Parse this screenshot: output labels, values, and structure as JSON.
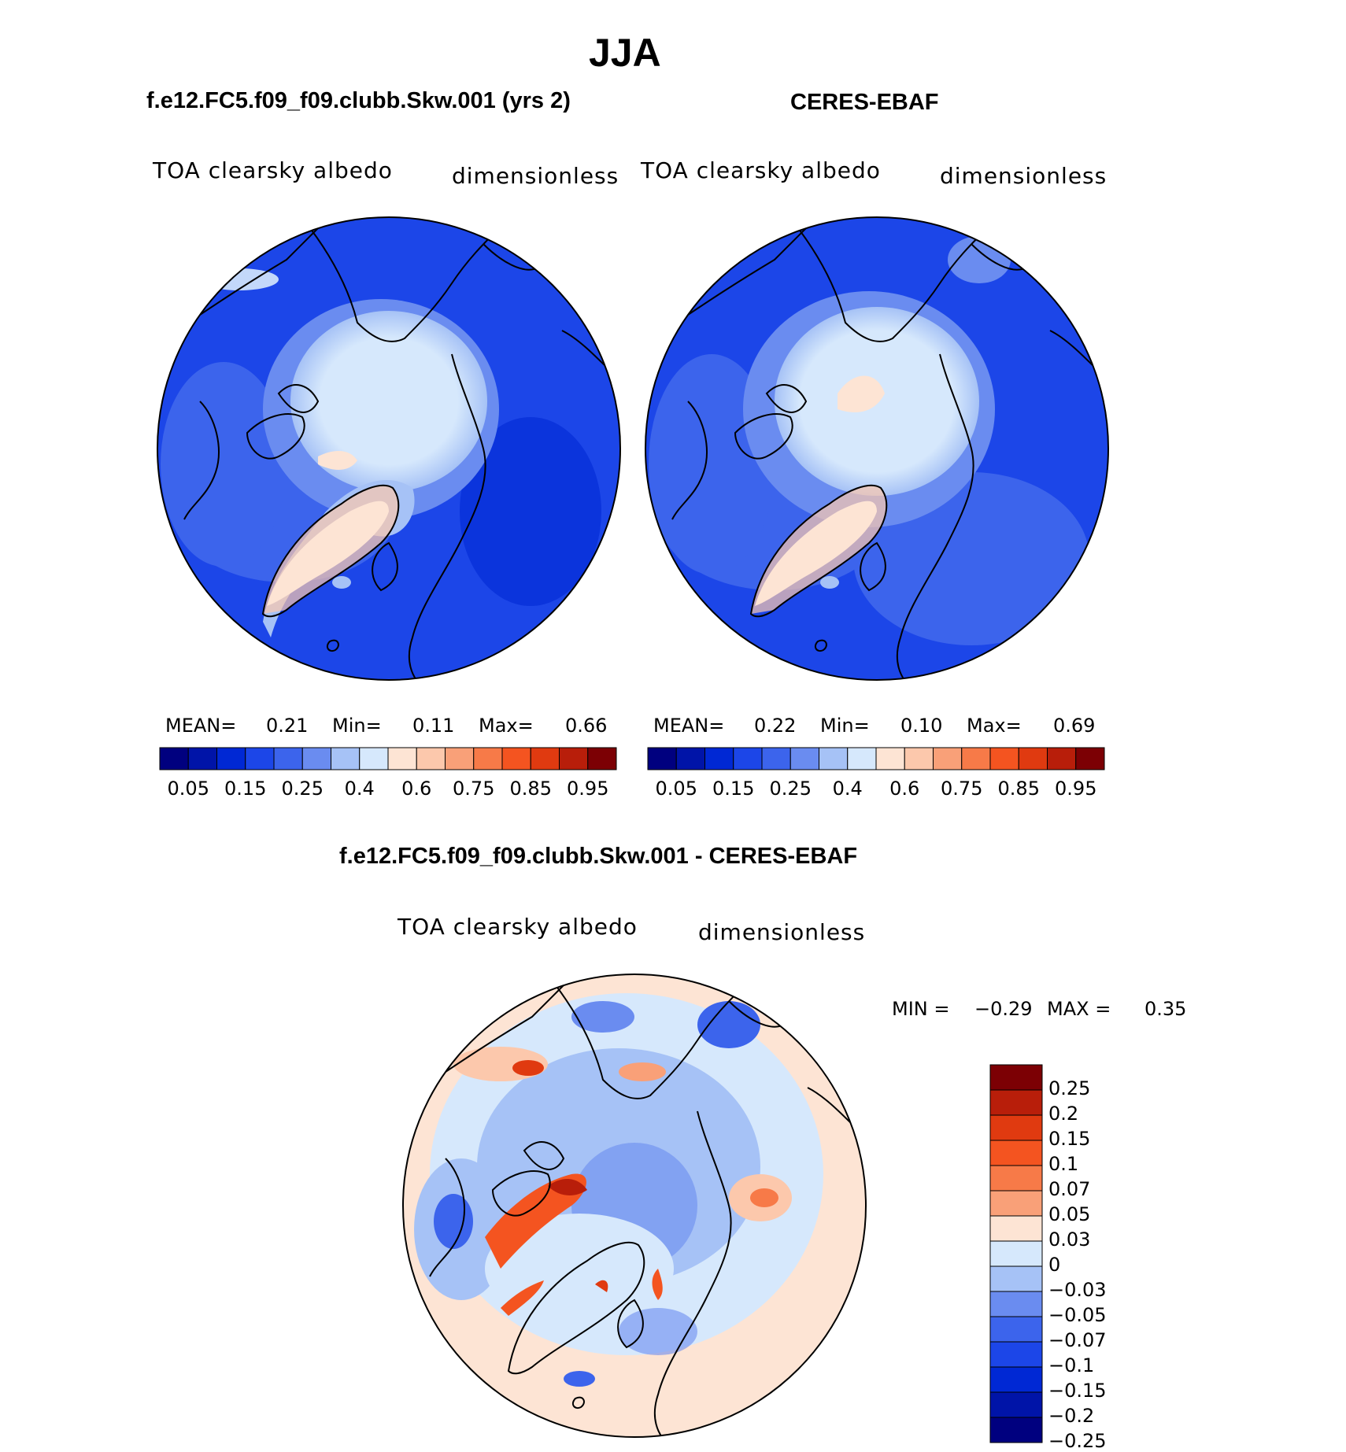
{
  "figure": {
    "season": "JJA"
  },
  "panels": [
    {
      "title": "f.e12.FC5.f09_f09.clubb.Skw.001 (yrs 2)",
      "variable": "TOA clearsky albedo",
      "units": "dimensionless",
      "mean_label": "MEAN=",
      "mean": "0.21",
      "min_label": "Min=",
      "min": "0.11",
      "max_label": "Max=",
      "max": "0.66"
    },
    {
      "title": "CERES-EBAF",
      "variable": "TOA clearsky albedo",
      "units": "dimensionless",
      "mean_label": "MEAN=",
      "mean": "0.22",
      "min_label": "Min=",
      "min": "0.10",
      "max_label": "Max=",
      "max": "0.69"
    }
  ],
  "diff": {
    "title": "f.e12.FC5.f09_f09.clubb.Skw.001 - CERES-EBAF",
    "variable": "TOA clearsky albedo",
    "units": "dimensionless",
    "min_label": "MIN =",
    "min": "−0.29",
    "max_label": "MAX =",
    "max": "0.35"
  },
  "colorbar_top": {
    "colors": [
      "#00007f",
      "#0014a8",
      "#0028d4",
      "#1c46e8",
      "#3c64ec",
      "#6a8cf0",
      "#a6c2f6",
      "#d6e8fc",
      "#fde4d4",
      "#fcc8ac",
      "#f9a078",
      "#f77a48",
      "#f45420",
      "#e03a10",
      "#b81e0a",
      "#7c0004"
    ],
    "tick_labels": [
      "0.05",
      "0.15",
      "0.25",
      "0.4",
      "0.6",
      "0.75",
      "0.85",
      "0.95"
    ]
  },
  "colorbar_diff": {
    "colors": [
      "#7c0004",
      "#b81e0a",
      "#e03a10",
      "#f45420",
      "#f77a48",
      "#f9a078",
      "#fde4d4",
      "#d6e8fc",
      "#a6c2f6",
      "#6a8cf0",
      "#3c64ec",
      "#1c46e8",
      "#0028d4",
      "#0014a8",
      "#00007f"
    ],
    "tick_labels": [
      "0.25",
      "0.2",
      "0.15",
      "0.1",
      "0.07",
      "0.05",
      "0.03",
      "0",
      "−0.03",
      "−0.05",
      "−0.07",
      "−0.1",
      "−0.15",
      "−0.2",
      "−0.25"
    ]
  }
}
